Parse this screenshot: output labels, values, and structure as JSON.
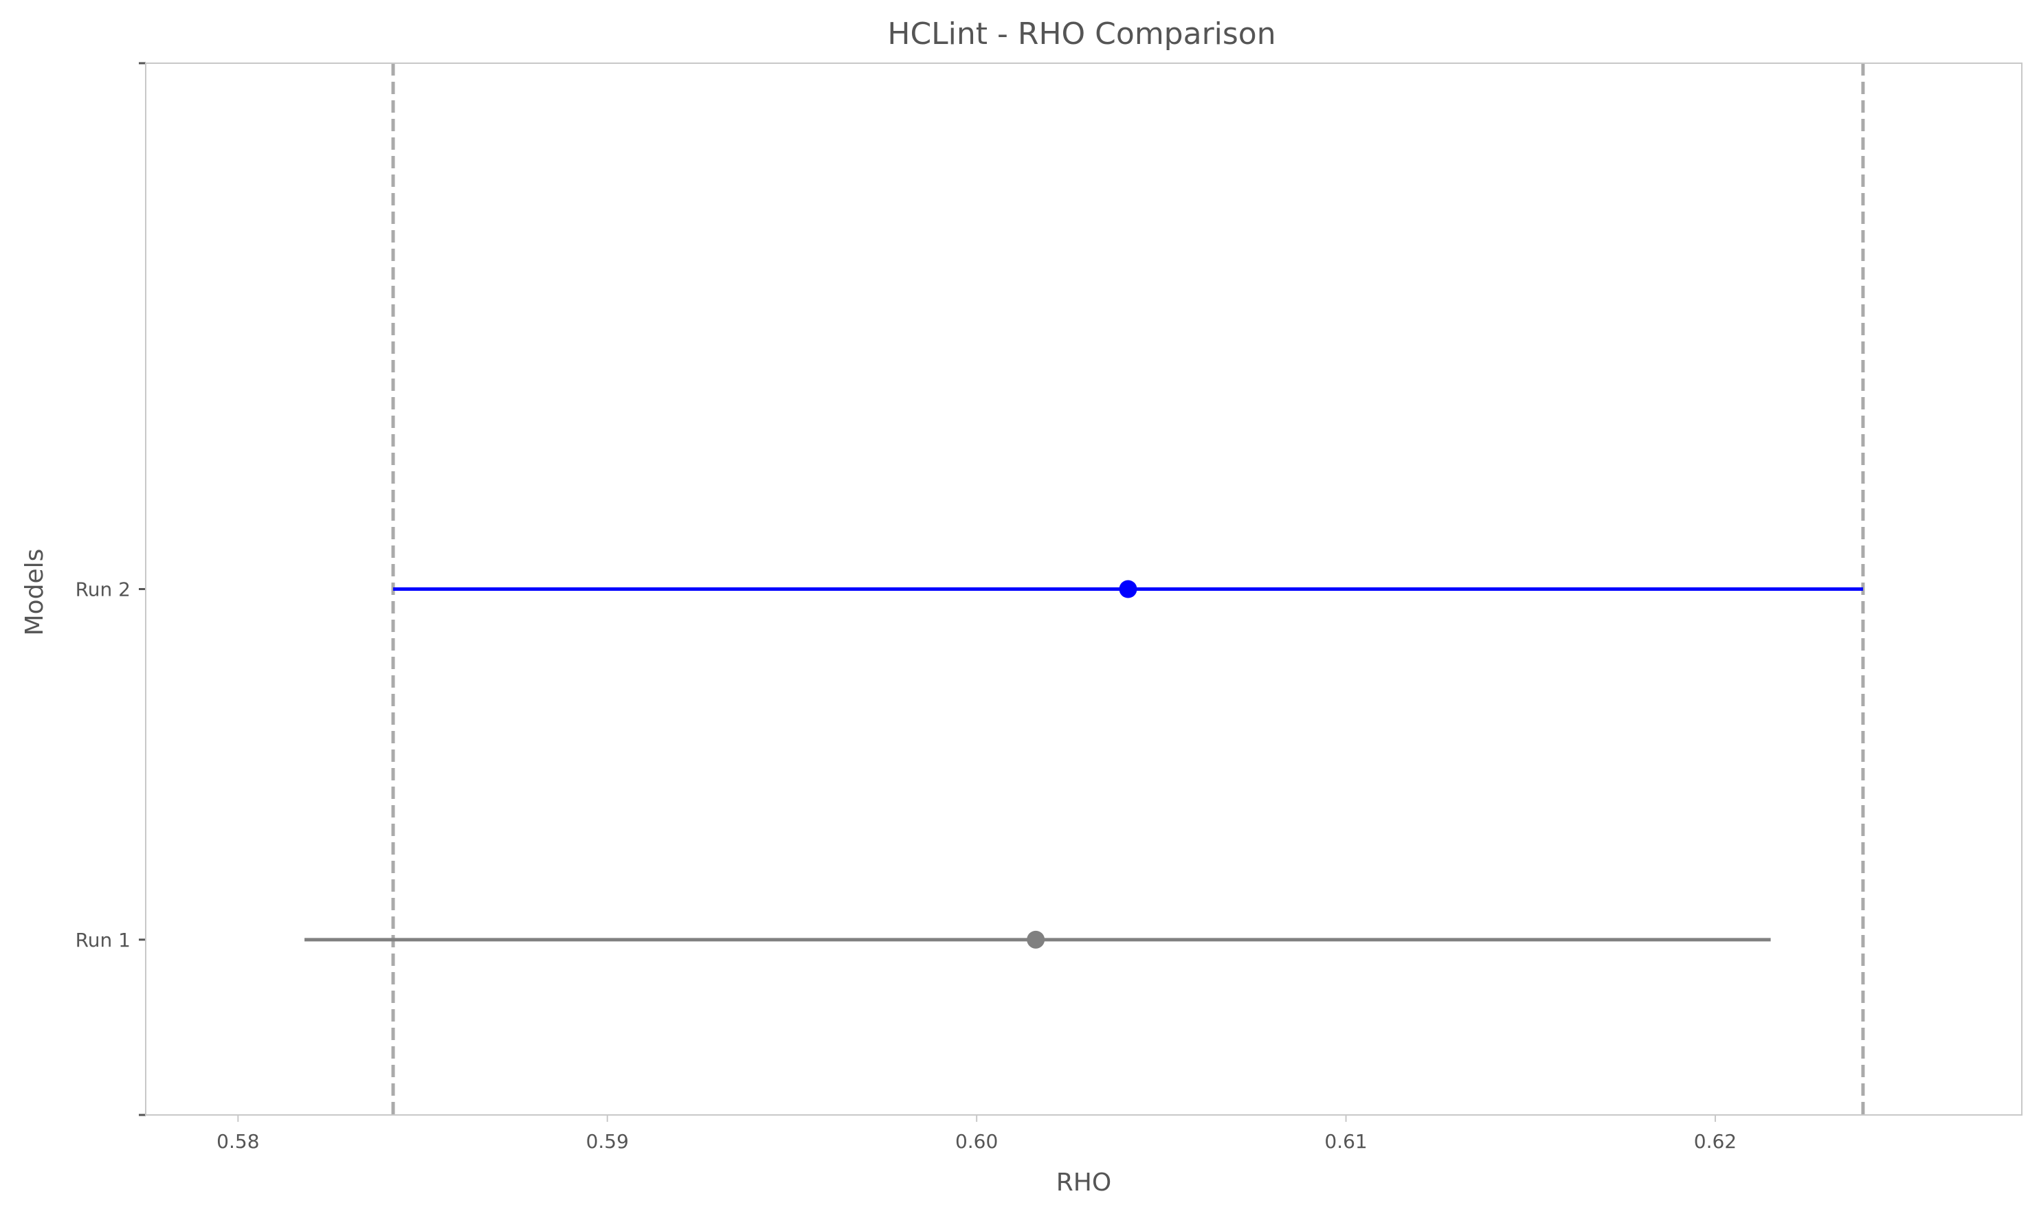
{
  "chart_data": {
    "type": "errorbar",
    "title": "HCLint  - RHO Comparison",
    "xlabel": "RHO",
    "ylabel": "Models",
    "xlim": [
      0.5775,
      0.6283
    ],
    "ylim": [
      -0.5,
      2.5
    ],
    "x_ticks": [
      0.58,
      0.59,
      0.6,
      0.61,
      0.62
    ],
    "x_tick_labels": [
      "0.58",
      "0.59",
      "0.60",
      "0.61",
      "0.62"
    ],
    "grid": false,
    "reference_lines": [
      {
        "x": 0.5842,
        "style": "dashed",
        "color": "#aaaaaa"
      },
      {
        "x": 0.624,
        "style": "dashed",
        "color": "#aaaaaa"
      }
    ],
    "series": [
      {
        "category": "Run 1",
        "y": 0,
        "value": 0.6016,
        "low": 0.5818,
        "high": 0.6215,
        "color": "#808080"
      },
      {
        "category": "Run 2",
        "y": 1,
        "value": 0.6041,
        "low": 0.5842,
        "high": 0.624,
        "color": "#0000ff"
      }
    ]
  }
}
